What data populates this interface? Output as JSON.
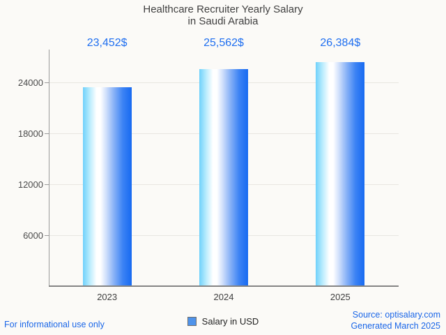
{
  "title": {
    "line1": "Healthcare Recruiter Yearly Salary",
    "line2": "in Saudi Arabia"
  },
  "chart_data": {
    "type": "bar",
    "title": "Healthcare Recruiter Yearly Salary in Saudi Arabia",
    "categories": [
      "2023",
      "2024",
      "2025"
    ],
    "values": [
      23452,
      25562,
      26384
    ],
    "value_labels": [
      "23,452$",
      "25,562$",
      "26,384$"
    ],
    "series_name": "Salary in USD",
    "xlabel": "",
    "ylabel": "",
    "y_ticks": [
      6000,
      12000,
      18000,
      24000
    ],
    "ylim": [
      0,
      27800
    ],
    "grid": true,
    "legend_position": "bottom"
  },
  "legend": {
    "label": "Salary in USD",
    "swatch_color": "#4f93ea"
  },
  "footer": {
    "disclaimer": "For informational use only",
    "source": "Source: optisalary.com",
    "generated": "Generated March 2025"
  },
  "colors": {
    "value_label_blue": "#1e6ef0",
    "link_blue": "#1a66e8",
    "text_gray": "#3f3f3f",
    "grid": "#e8e6e1",
    "axis": "#848484",
    "background": "#fbfaf7",
    "bar_gradient": [
      "#6fd1fb",
      "#ffffff",
      "#176af1"
    ]
  }
}
